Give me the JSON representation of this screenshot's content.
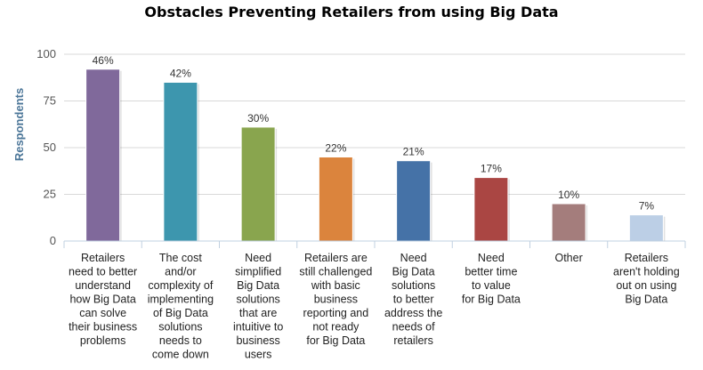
{
  "chart_data": {
    "type": "bar",
    "title": "Obstacles Preventing Retailers from using Big Data",
    "ylabel": "Respondents",
    "xlabel": "",
    "ylim": [
      0,
      100
    ],
    "yticks": [
      0,
      25,
      50,
      75,
      100
    ],
    "grid": true,
    "categories": [
      "Retailers need to better understand how Big Data can solve their business problems",
      "The cost and/or complexity of implementing of Big Data solutions needs to come down",
      "Need simplified Big Data solutions that are intuitive to business users",
      "Retailers are still challenged with basic business reporting and not ready for Big Data",
      "Need Big Data solutions to better address the needs of retailers",
      "Need better time to value for Big Data",
      "Other",
      "Retailers aren't holding out on using Big Data"
    ],
    "category_lines": [
      [
        "Retailers",
        "need to better",
        "understand",
        "how Big Data",
        "can solve",
        "their business",
        "problems"
      ],
      [
        "The cost",
        "and/or",
        "complexity of",
        "implementing",
        "of Big Data",
        "solutions",
        "needs to",
        "come down"
      ],
      [
        "Need",
        "simplified",
        "Big Data",
        "solutions",
        "that are",
        "intuitive to",
        "business",
        "users"
      ],
      [
        "Retailers are",
        "still challenged",
        "with basic",
        "business",
        "reporting and",
        "not ready",
        "for Big Data"
      ],
      [
        "Need",
        "Big Data",
        "solutions",
        "to better",
        "address the",
        "needs of",
        "retailers"
      ],
      [
        "Need",
        "better time",
        "to value",
        "for Big Data"
      ],
      [
        "Other"
      ],
      [
        "Retailers",
        "aren't holding",
        "out on using",
        "Big Data"
      ]
    ],
    "values": [
      92,
      85,
      61,
      45,
      43,
      34,
      20,
      14
    ],
    "data_labels": [
      "46%",
      "42%",
      "30%",
      "22%",
      "21%",
      "17%",
      "10%",
      "7%"
    ],
    "colors": [
      "#80699b",
      "#3d96ae",
      "#89a54e",
      "#db843d",
      "#4572a7",
      "#aa4643",
      "#a47d7c",
      "#b5ca92"
    ],
    "bar_colors_note": "",
    "series_colors": [
      "#80699b",
      "#3d96ae",
      "#89a54e",
      "#db843d",
      "#4572a7",
      "#aa4643",
      "#a47d7c",
      "#bccfe6"
    ]
  }
}
